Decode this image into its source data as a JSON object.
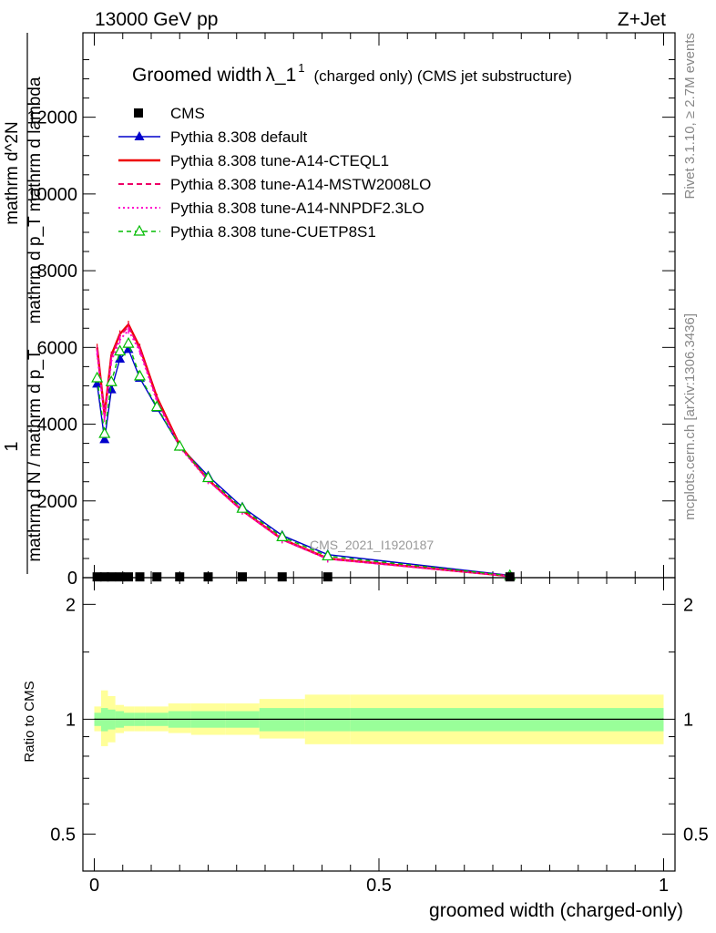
{
  "header": {
    "left_label": "13000 GeV pp",
    "right_label": "Z+Jet",
    "plot_title": "Groomed width",
    "plot_title_symbol": "λ_1",
    "plot_title_sup": "1",
    "plot_title_suffix": "(charged only) (CMS jet substructure)"
  },
  "side_labels": {
    "rivet": "Rivet 3.1.10, ≥ 2.7M events",
    "mcplots": "mcplots.cern.ch [arXiv:1306.3436]"
  },
  "watermark": "CMS_2021_I1920187",
  "colors": {
    "cms": "#000000",
    "default": "#0000cc",
    "cteql1": "#ee0000",
    "mstw": "#ee0066",
    "nnpdf": "#ff00cc",
    "cuetp8s1": "#00bb00",
    "band_inner": "#99ff99",
    "band_outer": "#ffff99"
  },
  "chart_data": [
    {
      "type": "line",
      "xlabel": "groomed width (charged-only)",
      "ylabel_parts": [
        "1",
        "mathrm d N / mathrm d p_T",
        "mathrm d^2N",
        "mathrm d p_T mathrm d lambda"
      ],
      "xlim": [
        -0.02,
        1.02
      ],
      "ylim": [
        0,
        14200
      ],
      "yticks": [
        0,
        2000,
        4000,
        6000,
        8000,
        10000,
        12000
      ],
      "ytick_labels": [
        "0",
        "2000",
        "4000",
        "6000",
        "8000",
        "10000",
        "12000"
      ],
      "legend_position": "top-left",
      "legend": [
        {
          "key": "cms",
          "label": "CMS",
          "style": "square"
        },
        {
          "key": "default",
          "label": "Pythia 8.308 default",
          "style": "solid-triangle"
        },
        {
          "key": "cteql1",
          "label": "Pythia 8.308 tune-A14-CTEQL1",
          "style": "solid"
        },
        {
          "key": "mstw",
          "label": "Pythia 8.308 tune-A14-MSTW2008LO",
          "style": "dashed"
        },
        {
          "key": "nnpdf",
          "label": "Pythia 8.308 tune-A14-NNPDF2.3LO",
          "style": "dotted"
        },
        {
          "key": "cuetp8s1",
          "label": "Pythia 8.308 tune-CUETP8S1",
          "style": "dashed-open-triangle"
        }
      ],
      "x": [
        0.005,
        0.018,
        0.03,
        0.045,
        0.06,
        0.08,
        0.11,
        0.15,
        0.2,
        0.26,
        0.33,
        0.41,
        0.73
      ],
      "cms": [
        20,
        20,
        20,
        20,
        20,
        20,
        20,
        20,
        20,
        20,
        20,
        20,
        20
      ],
      "series": [
        {
          "key": "default",
          "name": "Pythia 8.308 default",
          "values": [
            5050,
            3600,
            4900,
            5700,
            5950,
            5200,
            4420,
            3430,
            2650,
            1840,
            1100,
            600,
            60
          ]
        },
        {
          "key": "cteql1",
          "name": "Pythia 8.308 tune-A14-CTEQL1",
          "values": [
            6000,
            4250,
            5800,
            6350,
            6600,
            6000,
            4700,
            3450,
            2550,
            1750,
            1000,
            500,
            40
          ]
        },
        {
          "key": "mstw",
          "name": "Pythia 8.308 tune-A14-MSTW2008LO",
          "values": [
            5950,
            4200,
            5750,
            6300,
            6550,
            5950,
            4650,
            3420,
            2540,
            1740,
            990,
            490,
            40
          ]
        },
        {
          "key": "nnpdf",
          "name": "Pythia 8.308 tune-A14-NNPDF2.3LO",
          "values": [
            5850,
            4150,
            5650,
            6200,
            6450,
            5900,
            4600,
            3400,
            2530,
            1740,
            990,
            490,
            40
          ]
        },
        {
          "key": "cuetp8s1",
          "name": "Pythia 8.308 tune-CUETP8S1",
          "values": [
            5200,
            3750,
            5100,
            5900,
            6100,
            5250,
            4450,
            3420,
            2600,
            1800,
            1060,
            560,
            50
          ]
        }
      ]
    },
    {
      "type": "area",
      "ylabel": "Ratio to CMS",
      "xlim": [
        -0.02,
        1.02
      ],
      "ylim": [
        0.4,
        2.35
      ],
      "y_scale": "log",
      "yticks": [
        0.5,
        1,
        2
      ],
      "ytick_labels": [
        "0.5",
        "1",
        "2"
      ],
      "xticks": [
        0,
        0.5,
        1
      ],
      "xtick_labels": [
        "0",
        "0.5",
        "1"
      ],
      "band_edges": [
        0,
        0.012,
        0.024,
        0.037,
        0.052,
        0.07,
        0.09,
        0.13,
        0.17,
        0.23,
        0.29,
        0.37,
        0.45,
        1.0
      ],
      "inner_lo": [
        0.96,
        0.93,
        0.94,
        0.95,
        0.96,
        0.96,
        0.96,
        0.95,
        0.95,
        0.95,
        0.93,
        0.93,
        0.93
      ],
      "inner_hi": [
        1.04,
        1.07,
        1.06,
        1.05,
        1.04,
        1.04,
        1.04,
        1.05,
        1.05,
        1.05,
        1.07,
        1.07,
        1.07
      ],
      "outer_lo": [
        0.93,
        0.85,
        0.87,
        0.92,
        0.93,
        0.93,
        0.93,
        0.92,
        0.91,
        0.91,
        0.89,
        0.86,
        0.86
      ],
      "outer_hi": [
        1.08,
        1.19,
        1.15,
        1.09,
        1.08,
        1.08,
        1.08,
        1.1,
        1.1,
        1.1,
        1.13,
        1.16,
        1.16
      ],
      "reference": 1.0
    }
  ]
}
